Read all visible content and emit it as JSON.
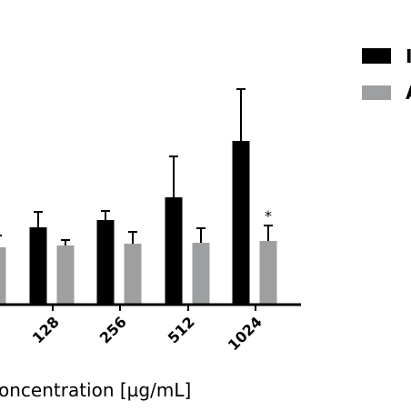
{
  "chart_data": {
    "type": "bar",
    "xlabel": "oncentration [µg/mL]",
    "categories": [
      "*",
      "128",
      "256",
      "512",
      "1024"
    ],
    "ylim": [
      0,
      2.4
    ],
    "grid": false,
    "legend_position": "top-right",
    "series": [
      {
        "color": "#000000",
        "values": [
          null,
          0.85,
          0.93,
          1.18,
          1.8
        ],
        "errors": [
          null,
          0.17,
          0.1,
          0.45,
          0.57
        ],
        "legend_label": "I"
      },
      {
        "color": "#9d9fa1",
        "values": [
          0.63,
          0.65,
          0.67,
          0.68,
          0.7
        ],
        "errors": [
          0.13,
          0.06,
          0.13,
          0.16,
          0.17
        ],
        "annotations": [
          null,
          null,
          null,
          null,
          "*"
        ],
        "legend_label": "A"
      }
    ]
  }
}
